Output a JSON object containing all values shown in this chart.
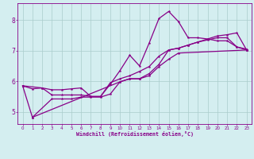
{
  "xlabel": "Windchill (Refroidissement éolien,°C)",
  "bg_color": "#d4eef0",
  "line_color": "#880088",
  "grid_color": "#aacccc",
  "xlim": [
    -0.5,
    23.5
  ],
  "ylim": [
    4.6,
    8.55
  ],
  "xticks": [
    0,
    1,
    2,
    3,
    4,
    5,
    6,
    7,
    8,
    9,
    10,
    11,
    12,
    13,
    14,
    15,
    16,
    17,
    18,
    19,
    20,
    21,
    22,
    23
  ],
  "yticks": [
    5,
    6,
    7,
    8
  ],
  "line1_x": [
    0,
    1,
    2,
    3,
    4,
    5,
    6,
    7,
    8,
    9,
    10,
    11,
    12,
    13,
    14,
    15,
    16,
    17,
    18,
    19,
    20,
    21,
    22,
    23
  ],
  "line1_y": [
    5.85,
    5.75,
    5.78,
    5.72,
    5.72,
    5.75,
    5.78,
    5.5,
    5.5,
    5.9,
    6.35,
    6.85,
    6.5,
    7.25,
    8.05,
    8.28,
    7.95,
    7.42,
    7.42,
    7.38,
    7.32,
    7.32,
    7.12,
    7.05
  ],
  "line2_x": [
    0,
    2,
    3,
    4,
    5,
    6,
    7,
    8,
    9,
    10,
    11,
    12,
    13,
    14,
    15,
    16,
    17,
    18,
    19,
    20,
    21,
    22,
    23
  ],
  "line2_y": [
    5.85,
    5.78,
    5.55,
    5.55,
    5.55,
    5.55,
    5.5,
    5.5,
    5.95,
    6.08,
    6.18,
    6.32,
    6.48,
    6.82,
    7.02,
    7.08,
    7.18,
    7.28,
    7.38,
    7.48,
    7.52,
    7.58,
    7.02
  ],
  "line3_x": [
    1,
    3,
    4,
    5,
    6,
    7,
    8,
    9,
    10,
    11,
    12,
    13,
    14,
    15,
    16,
    23
  ],
  "line3_y": [
    4.82,
    5.42,
    5.42,
    5.42,
    5.48,
    5.48,
    5.48,
    5.58,
    5.98,
    6.08,
    6.08,
    6.18,
    6.48,
    6.72,
    6.92,
    7.02
  ],
  "line4_x": [
    0,
    1,
    10,
    11,
    12,
    13,
    14,
    15,
    16,
    17,
    18,
    19,
    20,
    21,
    22,
    23
  ],
  "line4_y": [
    5.85,
    4.82,
    5.98,
    6.08,
    6.08,
    6.25,
    6.55,
    7.02,
    7.08,
    7.18,
    7.28,
    7.35,
    7.42,
    7.42,
    7.12,
    7.02
  ]
}
